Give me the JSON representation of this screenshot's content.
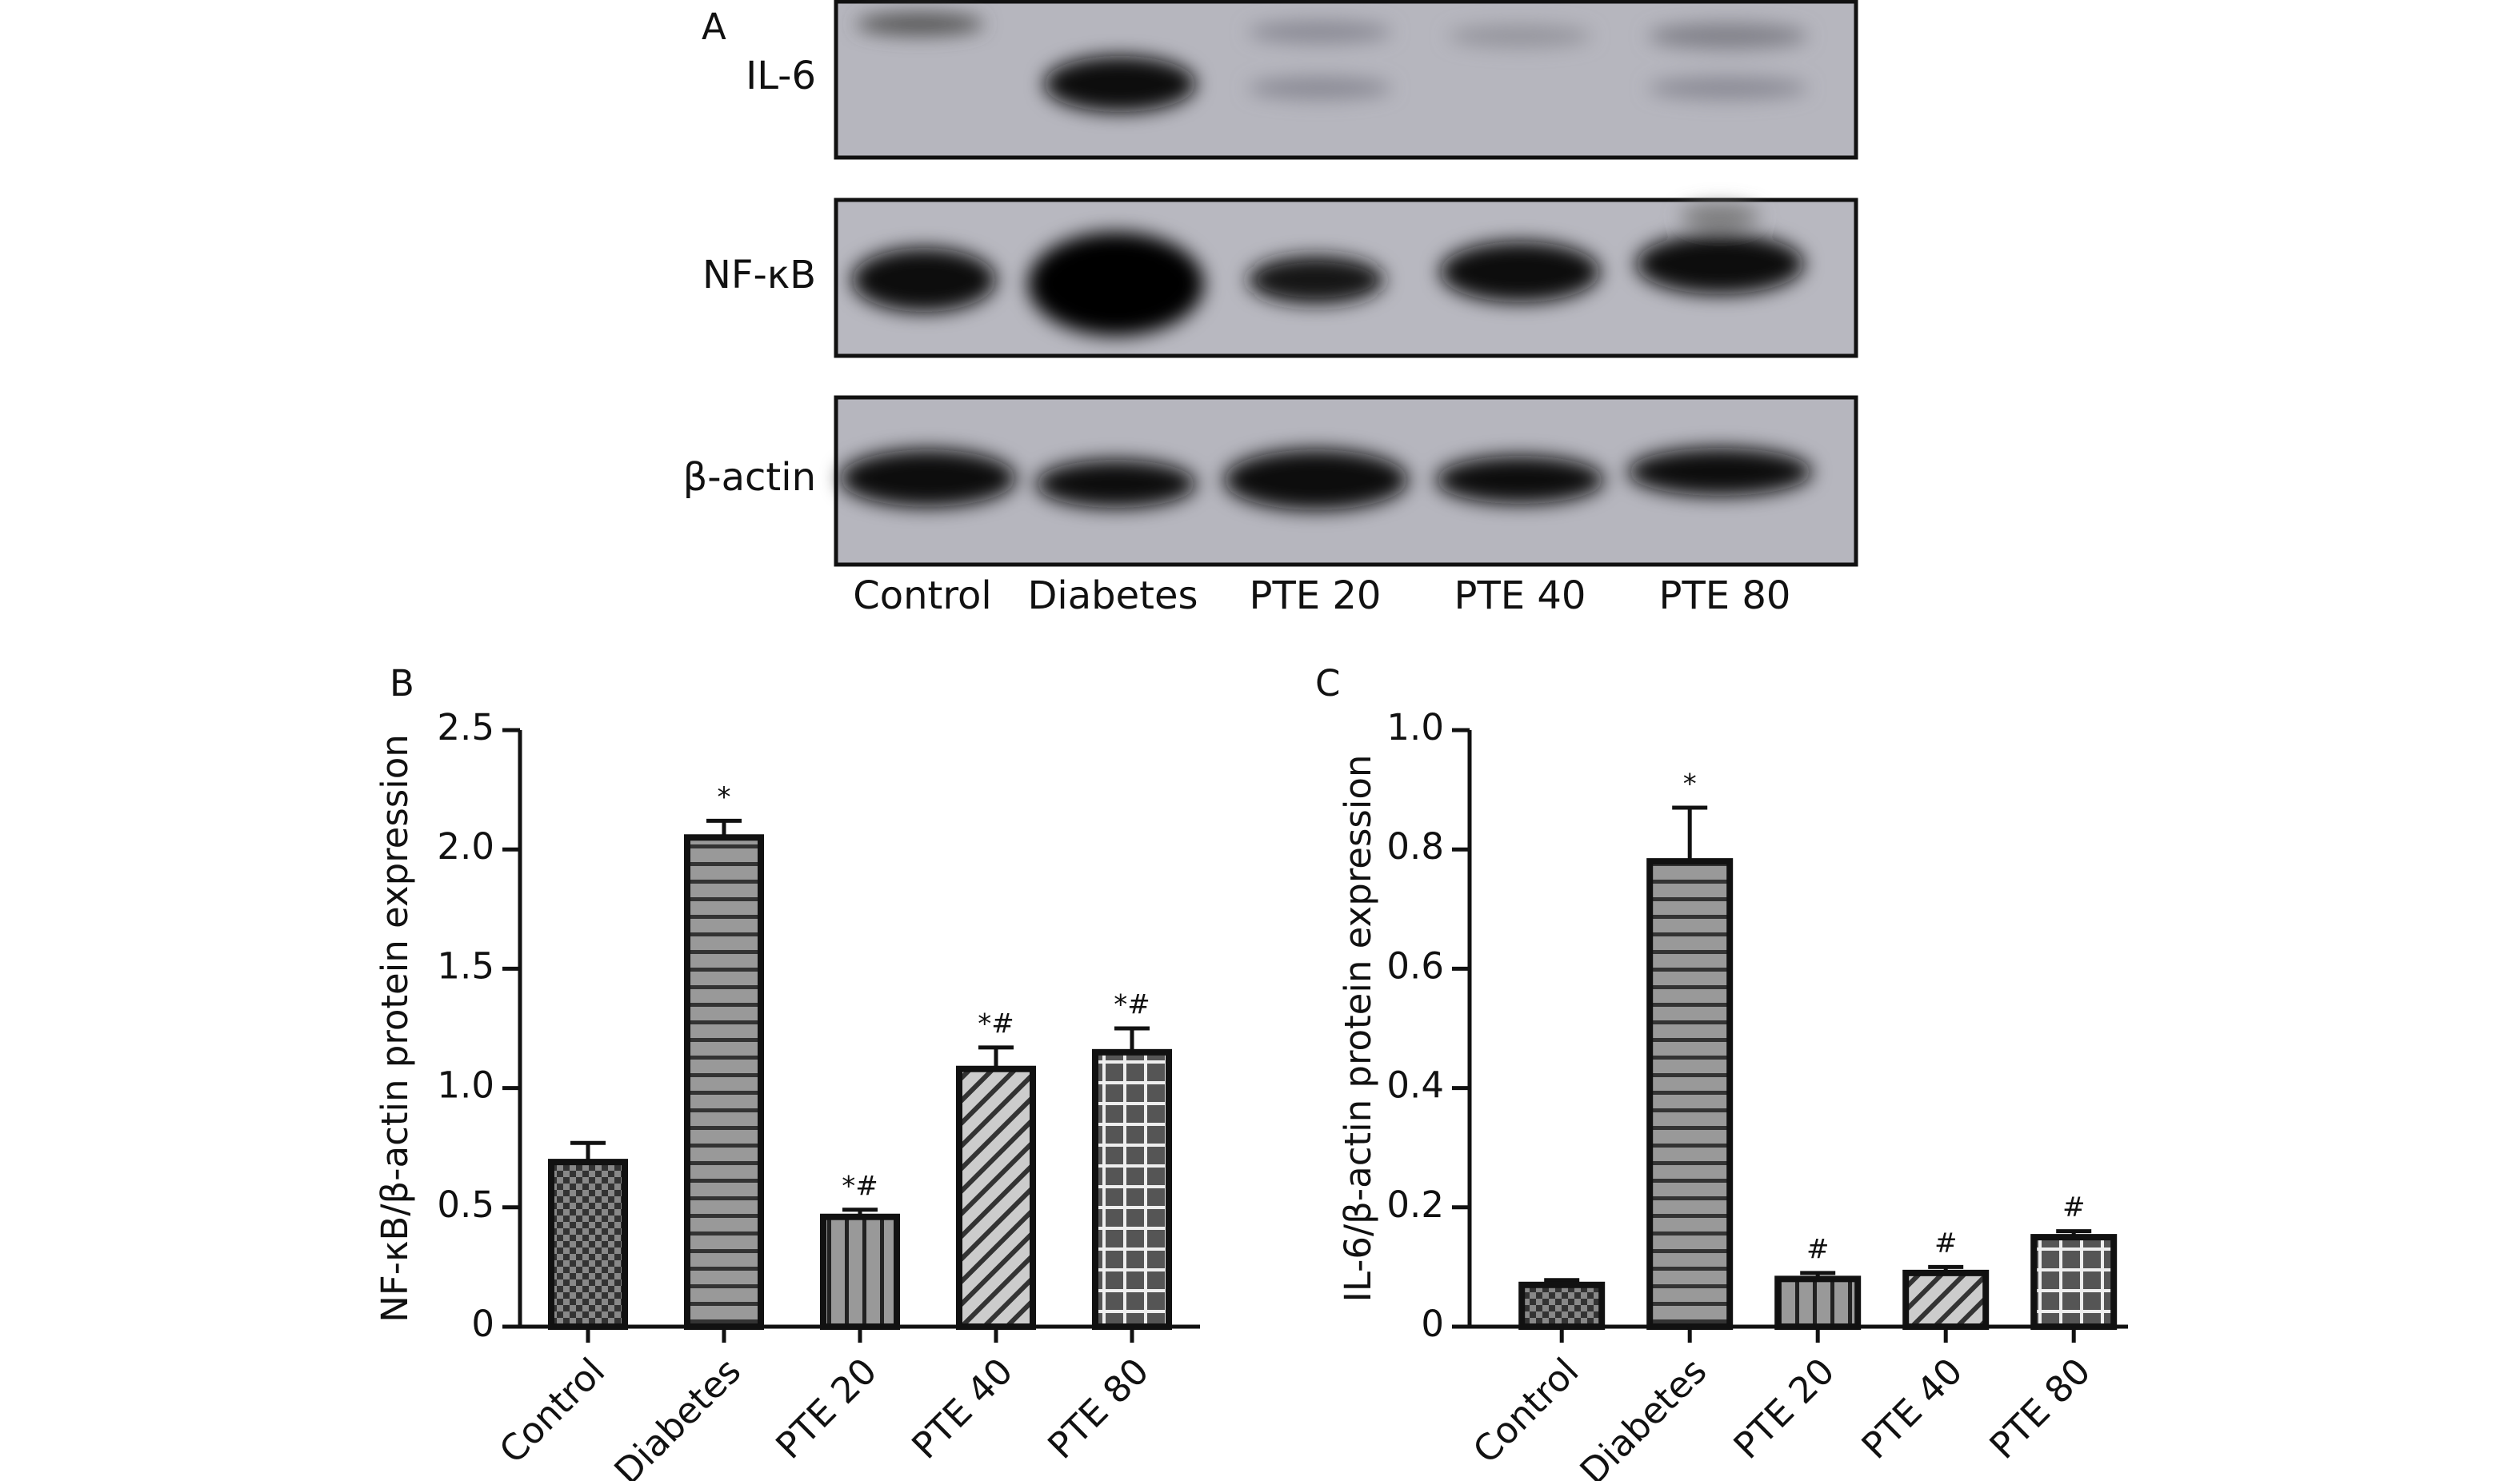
{
  "panel_a": {
    "label": "A",
    "rows": [
      "IL-6",
      "NF-κB",
      "β-actin"
    ],
    "lanes": [
      "Control",
      "Diabetes",
      "PTE 20",
      "PTE 40",
      "PTE 80"
    ]
  },
  "chart_data": [
    {
      "type": "bar",
      "panel_label": "B",
      "y_label": "NF-κB/β-actin protein expression",
      "categories": [
        "Control",
        "Diabetes",
        "PTE 20",
        "PTE 40",
        "PTE 80"
      ],
      "values": [
        0.69,
        2.05,
        0.46,
        1.08,
        1.15
      ],
      "errors": [
        0.08,
        0.07,
        0.03,
        0.09,
        0.1
      ],
      "annotations": [
        null,
        "*",
        "*#",
        "*#",
        "*#"
      ],
      "color": "#555555",
      "ylim": [
        0,
        2.5
      ],
      "yticks": [
        0,
        0.5,
        {
          "value": 1,
          "label": "1.0"
        },
        1.5,
        {
          "value": 2,
          "label": "2.0"
        },
        2.5
      ]
    },
    {
      "type": "bar",
      "panel_label": "C",
      "y_label": "IL-6/β-actin protein expression",
      "categories": [
        "Control",
        "Diabetes",
        "PTE 20",
        "PTE 40",
        "PTE 80"
      ],
      "values": [
        0.07,
        0.78,
        0.08,
        0.09,
        0.15
      ],
      "errors": [
        0.008,
        0.09,
        0.01,
        0.01,
        0.01
      ],
      "annotations": [
        null,
        "*",
        "#",
        "#",
        "#"
      ],
      "color": "#555555",
      "ylim": [
        0,
        1
      ],
      "yticks": [
        0,
        0.2,
        0.4,
        0.6,
        0.8,
        {
          "value": 1,
          "label": "1.0"
        }
      ]
    }
  ]
}
